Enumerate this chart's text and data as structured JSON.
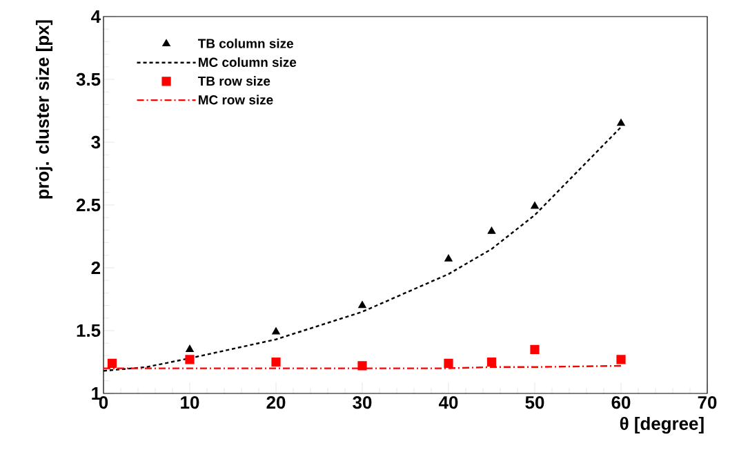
{
  "chart_data": {
    "type": "scatter",
    "xlabel": "θ [degree]",
    "ylabel": "proj. cluster size [px]",
    "xlim": [
      0,
      70
    ],
    "ylim": [
      1,
      4
    ],
    "xticks": [
      0,
      10,
      20,
      30,
      40,
      50,
      60,
      70
    ],
    "yticks": [
      1,
      1.5,
      2,
      2.5,
      3,
      3.5,
      4
    ],
    "grid": false,
    "legend": "top left",
    "series": [
      {
        "name": "TB column size",
        "marker": "triangle",
        "color": "#000000",
        "x": [
          10,
          20,
          30,
          40,
          45,
          50,
          60
        ],
        "values": [
          1.35,
          1.49,
          1.7,
          2.07,
          2.29,
          2.49,
          3.15
        ]
      },
      {
        "name": "MC column size",
        "type": "line",
        "line_style": "dashed",
        "color": "#000000",
        "x": [
          0,
          5,
          10,
          20,
          30,
          40,
          45,
          50,
          60
        ],
        "values": [
          1.18,
          1.21,
          1.28,
          1.43,
          1.65,
          1.95,
          2.15,
          2.42,
          3.12
        ]
      },
      {
        "name": "TB row size",
        "marker": "square",
        "color": "#ff0000",
        "x": [
          1,
          10,
          20,
          30,
          40,
          45,
          50,
          60
        ],
        "values": [
          1.24,
          1.27,
          1.25,
          1.22,
          1.24,
          1.25,
          1.35,
          1.27
        ]
      },
      {
        "name": "MC row size",
        "type": "line",
        "line_style": "dashdot",
        "color": "#ff0000",
        "x": [
          0,
          10,
          20,
          30,
          40,
          45,
          50,
          60
        ],
        "values": [
          1.2,
          1.2,
          1.2,
          1.2,
          1.2,
          1.21,
          1.21,
          1.22
        ]
      }
    ]
  }
}
